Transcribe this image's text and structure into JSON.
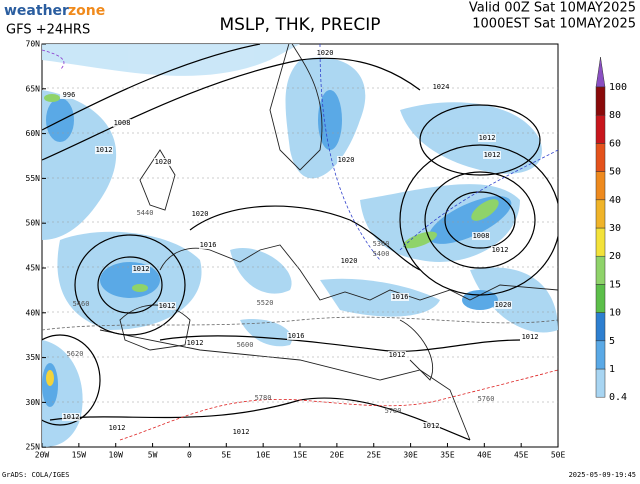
{
  "header": {
    "logo_a": "weather",
    "logo_b": "zone",
    "model": "GFS +24HRS",
    "title": "MSLP, THK, PRECIP",
    "valid_utc": "Valid 00Z Sat 10MAY2025",
    "valid_local": "1000EST Sat 10MAY2025"
  },
  "axes": {
    "lat_labels": [
      "70N",
      "65N",
      "60N",
      "55N",
      "50N",
      "45N",
      "40N",
      "35N",
      "30N",
      "25N"
    ],
    "lon_labels": [
      "20W",
      "15W",
      "10W",
      "5W",
      "0",
      "5E",
      "10E",
      "15E",
      "20E",
      "25E",
      "30E",
      "35E",
      "40E",
      "45E",
      "50E"
    ]
  },
  "isobar_labels": [
    "1020",
    "1024",
    "996",
    "1008",
    "1012",
    "1020",
    "1020",
    "1012",
    "1012",
    "1020",
    "1008",
    "1012",
    "1016",
    "1012",
    "1020",
    "1012",
    "1016",
    "1016",
    "1012",
    "1012",
    "1020",
    "1012",
    "1012",
    "1012",
    "1012",
    "1012"
  ],
  "thickness_labels": [
    "5440",
    "5360",
    "5400",
    "5460",
    "5520",
    "5600",
    "5620",
    "5780",
    "5780",
    "5760"
  ],
  "colorbar": {
    "levels": [
      0.4,
      1,
      5,
      10,
      15,
      20,
      30,
      40,
      50,
      60,
      80,
      100
    ],
    "colors": [
      "#c8e6f8",
      "#a8d5f2",
      "#5aa9e6",
      "#2d7fd0",
      "#5cbf4a",
      "#8fd36a",
      "#f3e23a",
      "#f0b429",
      "#ee8a1e",
      "#e4521b",
      "#c8161c",
      "#8a0a0a"
    ],
    "top_color": "#8a4fc2"
  },
  "footer": {
    "credit": "GrADS: COLA/IGES",
    "timestamp": "2025-05-09-19:45"
  }
}
